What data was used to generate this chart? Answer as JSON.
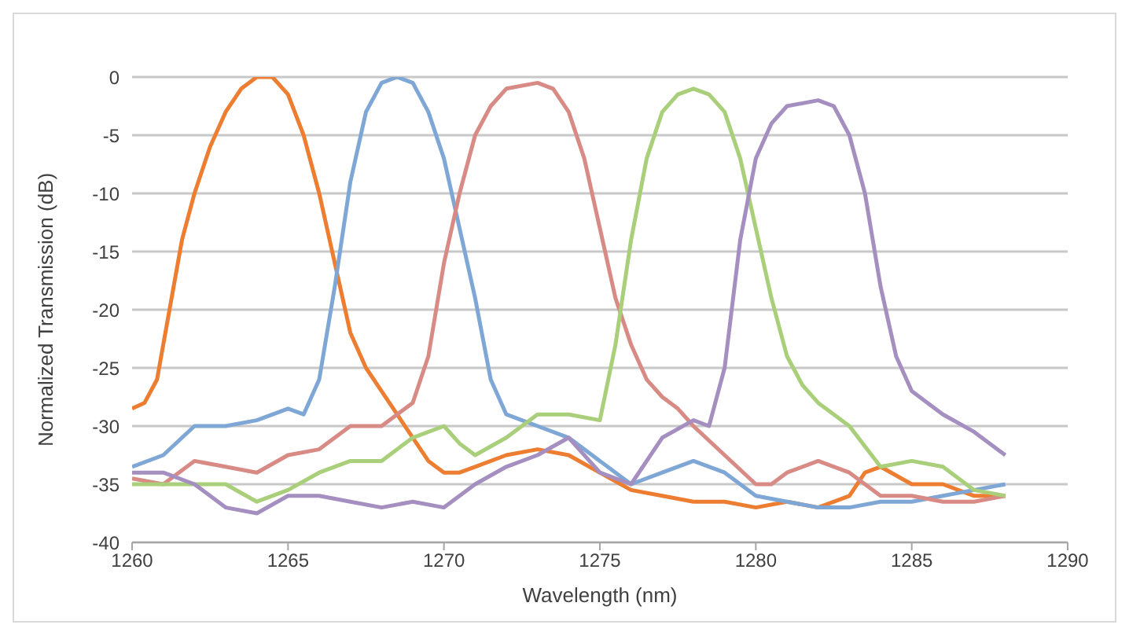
{
  "chart_data": {
    "type": "line",
    "xlabel": "Wavelength (nm)",
    "ylabel": "Normalized Transmission (dB)",
    "xlim": [
      1260,
      1290
    ],
    "xticks": [
      1260,
      1265,
      1270,
      1275,
      1280,
      1285,
      1290
    ],
    "ylim": [
      -40,
      0
    ],
    "yticks": [
      -40,
      -35,
      -30,
      -25,
      -20,
      -15,
      -10,
      -5,
      0
    ],
    "grid": "y",
    "legend": false,
    "marker": "none",
    "line_style": "solid",
    "series": [
      {
        "color": "#ed7d31",
        "x": [
          1260,
          1260.4,
          1260.8,
          1261.2,
          1261.6,
          1262,
          1262.5,
          1263,
          1263.5,
          1264,
          1264.5,
          1265,
          1265.5,
          1266,
          1266.5,
          1267,
          1267.5,
          1268,
          1268.5,
          1269,
          1269.5,
          1270,
          1270.5,
          1271,
          1272,
          1273,
          1274,
          1275,
          1276,
          1277,
          1278,
          1279,
          1280,
          1281,
          1282,
          1283,
          1283.5,
          1284,
          1285,
          1286,
          1287,
          1288
        ],
        "values": [
          -28.5,
          -28,
          -26,
          -20,
          -14,
          -10,
          -6,
          -3,
          -1,
          0,
          0,
          -1.5,
          -5,
          -10,
          -16,
          -22,
          -25,
          -27,
          -29,
          -31,
          -33,
          -34,
          -34,
          -33.5,
          -32.5,
          -32,
          -32.5,
          -34,
          -35.5,
          -36,
          -36.5,
          -36.5,
          -37,
          -36.5,
          -37,
          -36,
          -34,
          -33.5,
          -35,
          -35,
          -36,
          -36
        ]
      },
      {
        "color": "#7fa7d6",
        "x": [
          1260,
          1261,
          1262,
          1263,
          1264,
          1265,
          1265.5,
          1266,
          1266.5,
          1267,
          1267.5,
          1268,
          1268.5,
          1269,
          1269.5,
          1270,
          1270.5,
          1271,
          1271.5,
          1272,
          1272.5,
          1273,
          1274,
          1275,
          1276,
          1277,
          1278,
          1279,
          1280,
          1281,
          1282,
          1283,
          1284,
          1285,
          1286,
          1287,
          1288
        ],
        "values": [
          -33.5,
          -32.5,
          -30,
          -30,
          -29.5,
          -28.5,
          -29,
          -26,
          -18,
          -9,
          -3,
          -0.5,
          0,
          -0.5,
          -3,
          -7,
          -13,
          -19,
          -26,
          -29,
          -29.5,
          -30,
          -31,
          -33,
          -35,
          -34,
          -33,
          -34,
          -36,
          -36.5,
          -37,
          -37,
          -36.5,
          -36.5,
          -36,
          -35.5,
          -35
        ]
      },
      {
        "color": "#d88a84",
        "x": [
          1260,
          1261,
          1262,
          1263,
          1264,
          1265,
          1266,
          1267,
          1268,
          1268.5,
          1269,
          1269.5,
          1270,
          1270.5,
          1271,
          1271.5,
          1272,
          1273,
          1273.5,
          1274,
          1274.5,
          1275,
          1275.5,
          1276,
          1276.5,
          1277,
          1277.5,
          1278,
          1279,
          1280,
          1280.5,
          1281,
          1282,
          1283,
          1284,
          1285,
          1286,
          1287,
          1288
        ],
        "values": [
          -34.5,
          -35,
          -33,
          -33.5,
          -34,
          -32.5,
          -32,
          -30,
          -30,
          -29,
          -28,
          -24,
          -16,
          -10,
          -5,
          -2.5,
          -1,
          -0.5,
          -1,
          -3,
          -7,
          -13,
          -19,
          -23,
          -26,
          -27.5,
          -28.5,
          -30,
          -32.5,
          -35,
          -35,
          -34,
          -33,
          -34,
          -36,
          -36,
          -36.5,
          -36.5,
          -36
        ]
      },
      {
        "color": "#a9cf7a",
        "x": [
          1260,
          1262,
          1263,
          1264,
          1265,
          1266,
          1267,
          1268,
          1269,
          1270,
          1270.5,
          1271,
          1272,
          1273,
          1274,
          1275,
          1275.5,
          1276,
          1276.5,
          1277,
          1277.5,
          1278,
          1278.5,
          1279,
          1279.5,
          1280,
          1280.5,
          1281,
          1281.5,
          1282,
          1283,
          1284,
          1285,
          1286,
          1287,
          1288
        ],
        "values": [
          -35,
          -35,
          -35,
          -36.5,
          -35.5,
          -34,
          -33,
          -33,
          -31,
          -30,
          -31.5,
          -32.5,
          -31,
          -29,
          -29,
          -29.5,
          -23,
          -14,
          -7,
          -3,
          -1.5,
          -1,
          -1.5,
          -3,
          -7,
          -13,
          -19,
          -24,
          -26.5,
          -28,
          -30,
          -33.5,
          -33,
          -33.5,
          -35.5,
          -36
        ]
      },
      {
        "color": "#a48fc0",
        "x": [
          1260,
          1261,
          1262,
          1263,
          1264,
          1265,
          1266,
          1267,
          1268,
          1269,
          1270,
          1271,
          1272,
          1273,
          1274,
          1275,
          1276,
          1277,
          1278,
          1278.5,
          1279,
          1279.5,
          1280,
          1280.5,
          1281,
          1282,
          1282.5,
          1283,
          1283.5,
          1284,
          1284.5,
          1285,
          1286,
          1287,
          1288
        ],
        "values": [
          -34,
          -34,
          -35,
          -37,
          -37.5,
          -36,
          -36,
          -36.5,
          -37,
          -36.5,
          -37,
          -35,
          -33.5,
          -32.5,
          -31,
          -34,
          -35,
          -31,
          -29.5,
          -30,
          -25,
          -14,
          -7,
          -4,
          -2.5,
          -2,
          -2.5,
          -5,
          -10,
          -18,
          -24,
          -27,
          -29,
          -30.5,
          -32.5
        ]
      }
    ]
  }
}
